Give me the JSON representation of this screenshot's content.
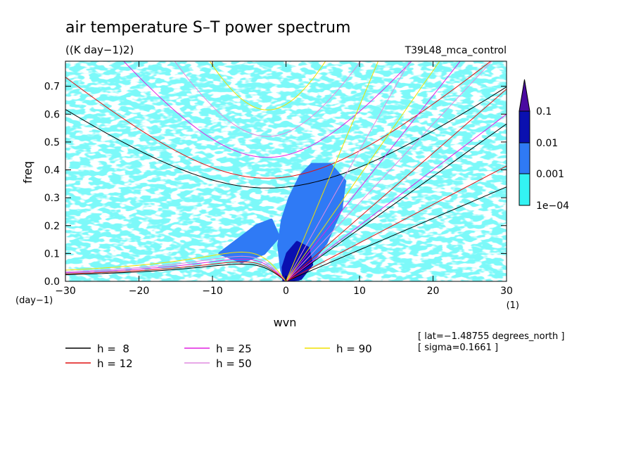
{
  "header": {
    "title": "air temperature S–T power spectrum",
    "units": "((K day−1)2)",
    "dataset": "T39L48_mca_control"
  },
  "colorbar": {
    "labels": [
      "0.1",
      "0.01",
      "0.001",
      "1e−04"
    ],
    "colors": [
      "#4a0aa0",
      "#0a10b0",
      "#2f7af5",
      "#33f3f3",
      "#ffffff"
    ]
  },
  "legend": [
    {
      "label": "h =  8",
      "color": "#000000"
    },
    {
      "label": "h = 12",
      "color": "#e01010"
    },
    {
      "label": "h = 25",
      "color": "#e020e0"
    },
    {
      "label": "h = 50",
      "color": "#e08ce0"
    },
    {
      "label": "h = 90",
      "color": "#f0e000"
    }
  ],
  "info": [
    "[ lat=−1.48755 degrees_north ]",
    "[ sigma=0.1661 ]"
  ],
  "chart_data": {
    "type": "heatmap",
    "xlabel": "wvn",
    "ylabel": "freq",
    "x_unit": "(1)",
    "y_unit": "(day−1)",
    "xlim": [
      -30,
      30
    ],
    "ylim": [
      0.0,
      0.79
    ],
    "xticks": [
      "−30",
      "−20",
      "−10",
      "0",
      "10",
      "20",
      "30"
    ],
    "xtick_values": [
      -30,
      -20,
      -10,
      0,
      10,
      20,
      30
    ],
    "yticks": [
      "0.0",
      "0.1",
      "0.2",
      "0.3",
      "0.4",
      "0.5",
      "0.6",
      "0.7"
    ],
    "ytick_values": [
      0.0,
      0.1,
      0.2,
      0.3,
      0.4,
      0.5,
      0.6,
      0.7
    ],
    "contour_levels": [
      0.0001,
      0.001,
      0.01,
      0.1
    ],
    "dispersion_curves": [
      {
        "h": 8,
        "color": "#000000",
        "rossby_max": 0.062,
        "ig_min": 0.335,
        "kelvin_at_30": 0.565
      },
      {
        "h": 12,
        "color": "#e01010",
        "rossby_max": 0.07,
        "ig_min": 0.37,
        "kelvin_at_30": 0.69
      },
      {
        "h": 25,
        "color": "#e020e0",
        "rossby_max": 0.08,
        "ig_min": 0.445,
        "kelvin_at_30": 1.0
      },
      {
        "h": 50,
        "color": "#e08ce0",
        "rossby_max": 0.09,
        "ig_min": 0.52,
        "kelvin_at_30": 1.41
      },
      {
        "h": 90,
        "color": "#f0e000",
        "rossby_max": 0.105,
        "ig_min": 0.615,
        "kelvin_at_30": 1.89
      }
    ]
  }
}
